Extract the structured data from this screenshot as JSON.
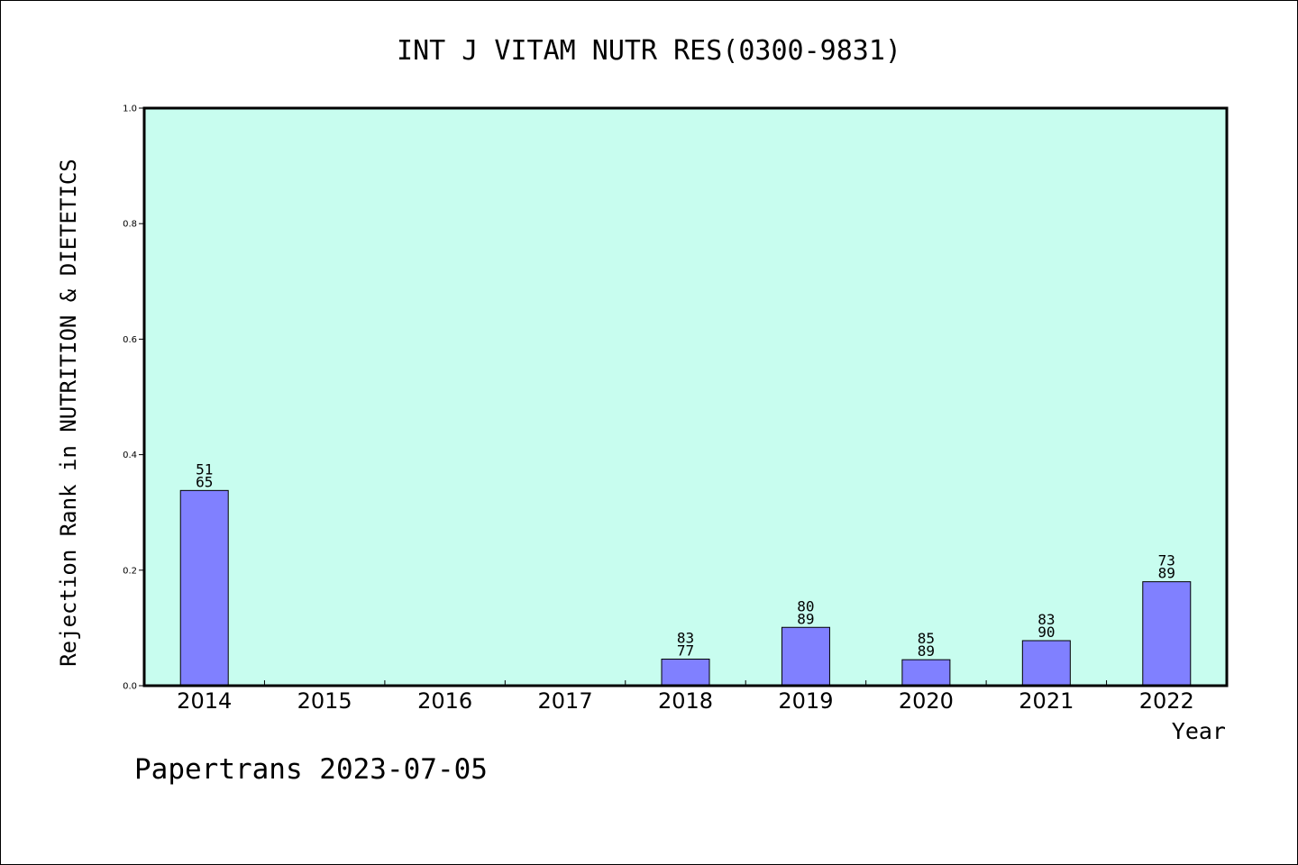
{
  "chart_data": {
    "type": "bar",
    "title": "INT J VITAM NUTR RES(0300-9831)",
    "xlabel": "Year",
    "ylabel": "Rejection Rank in NUTRITION & DIETETICS",
    "ylim": [
      0,
      1.0
    ],
    "yticks": [
      "0.0",
      "0.2",
      "0.4",
      "0.6",
      "0.8",
      "1.0"
    ],
    "categories": [
      "2014",
      "2015",
      "2016",
      "2017",
      "2018",
      "2019",
      "2020",
      "2021",
      "2022"
    ],
    "values": [
      0.338,
      null,
      null,
      null,
      0.046,
      0.101,
      0.045,
      0.078,
      0.18
    ],
    "labels_top": [
      "51",
      "",
      "",
      "",
      "83",
      "80",
      "85",
      "83",
      "73"
    ],
    "labels_bottom": [
      "65",
      "",
      "",
      "",
      "77",
      "89",
      "89",
      "90",
      "89"
    ],
    "grid": false,
    "legend": "none"
  },
  "footer": {
    "text": "Papertrans 2023-07-05"
  },
  "colors": {
    "plot_bg": "#c8fdef",
    "bar_fill": "#8080ff",
    "bar_stroke": "#000000",
    "axis": "#000000"
  }
}
